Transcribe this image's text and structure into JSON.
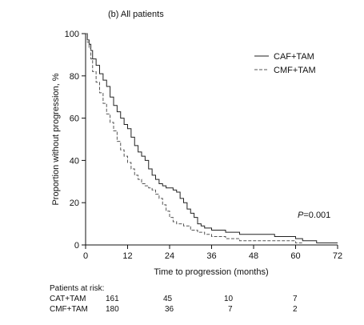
{
  "chart_data": {
    "type": "line",
    "title": "(b) All patients",
    "xlabel": "Time to progression (months)",
    "ylabel": "Proportion without progression, %",
    "xlim": [
      0,
      72
    ],
    "ylim": [
      0,
      100
    ],
    "xticks": [
      0,
      12,
      24,
      36,
      48,
      60,
      72
    ],
    "yticks": [
      0,
      20,
      40,
      60,
      80,
      100
    ],
    "grid": false,
    "legend_position": "top-right",
    "annotation": {
      "prefix": "P",
      "text": "=0.001"
    },
    "series": [
      {
        "name": "CAF+TAM",
        "style": "solid",
        "color": "#222222",
        "points": [
          [
            0,
            100
          ],
          [
            0.5,
            97
          ],
          [
            1,
            95
          ],
          [
            1.5,
            92
          ],
          [
            2,
            88
          ],
          [
            3,
            85
          ],
          [
            4,
            81
          ],
          [
            5,
            78
          ],
          [
            6,
            75
          ],
          [
            7,
            70
          ],
          [
            8,
            66
          ],
          [
            9,
            63
          ],
          [
            10,
            60
          ],
          [
            11,
            57
          ],
          [
            12,
            55
          ],
          [
            13,
            51
          ],
          [
            14,
            47
          ],
          [
            15,
            44
          ],
          [
            16,
            42
          ],
          [
            17,
            40
          ],
          [
            18,
            36
          ],
          [
            19,
            33
          ],
          [
            20,
            31
          ],
          [
            21,
            29
          ],
          [
            22,
            28
          ],
          [
            23,
            27
          ],
          [
            24,
            27
          ],
          [
            25,
            26
          ],
          [
            26,
            25
          ],
          [
            27,
            22
          ],
          [
            28,
            20
          ],
          [
            29,
            17
          ],
          [
            30,
            15
          ],
          [
            31,
            13
          ],
          [
            32,
            10
          ],
          [
            33,
            9
          ],
          [
            34,
            8
          ],
          [
            36,
            7
          ],
          [
            40,
            6
          ],
          [
            44,
            5
          ],
          [
            48,
            5
          ],
          [
            54,
            4
          ],
          [
            60,
            3
          ],
          [
            62,
            2
          ],
          [
            66,
            1
          ],
          [
            72,
            1
          ]
        ]
      },
      {
        "name": "CMF+TAM",
        "style": "dashed",
        "color": "#555555",
        "points": [
          [
            0,
            100
          ],
          [
            0.5,
            96
          ],
          [
            1,
            93
          ],
          [
            1.5,
            88
          ],
          [
            2,
            82
          ],
          [
            3,
            77
          ],
          [
            4,
            72
          ],
          [
            5,
            67
          ],
          [
            6,
            62
          ],
          [
            7,
            58
          ],
          [
            8,
            54
          ],
          [
            9,
            49
          ],
          [
            10,
            45
          ],
          [
            11,
            42
          ],
          [
            12,
            39
          ],
          [
            13,
            36
          ],
          [
            14,
            33
          ],
          [
            15,
            31
          ],
          [
            16,
            29
          ],
          [
            17,
            28
          ],
          [
            18,
            27
          ],
          [
            19,
            26
          ],
          [
            20,
            24
          ],
          [
            21,
            22
          ],
          [
            22,
            19
          ],
          [
            23,
            16
          ],
          [
            24,
            13
          ],
          [
            25,
            11
          ],
          [
            26,
            10
          ],
          [
            28,
            9
          ],
          [
            30,
            7
          ],
          [
            32,
            6
          ],
          [
            34,
            5
          ],
          [
            36,
            4
          ],
          [
            40,
            3
          ],
          [
            44,
            2
          ],
          [
            48,
            2
          ],
          [
            54,
            2
          ],
          [
            60,
            1
          ],
          [
            62,
            1
          ]
        ]
      }
    ]
  },
  "risk_table": {
    "title": "Patients at risk:",
    "rows": [
      {
        "label": "CAT+TAM",
        "values": [
          "161",
          "45",
          "10",
          "7"
        ]
      },
      {
        "label": "CMF+TAM",
        "values": [
          "180",
          "36",
          "7",
          "2"
        ]
      }
    ]
  }
}
